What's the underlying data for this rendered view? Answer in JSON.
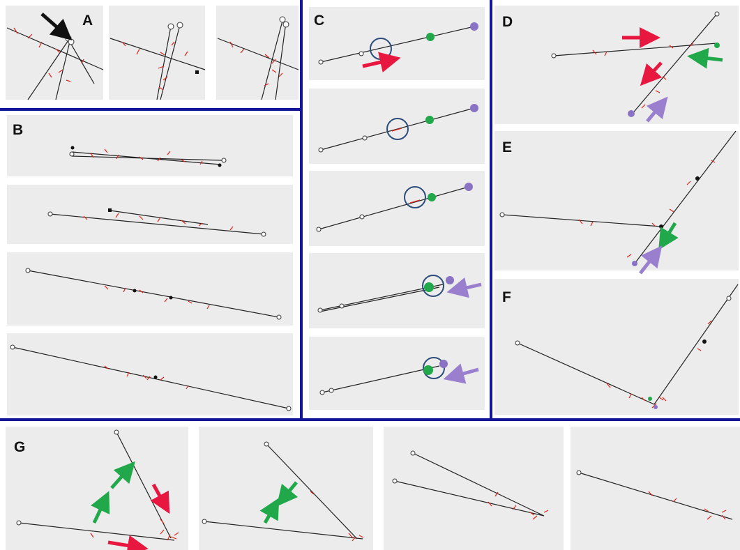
{
  "panel_labels": [
    "A",
    "B",
    "C",
    "D",
    "E",
    "F",
    "G"
  ]
}
